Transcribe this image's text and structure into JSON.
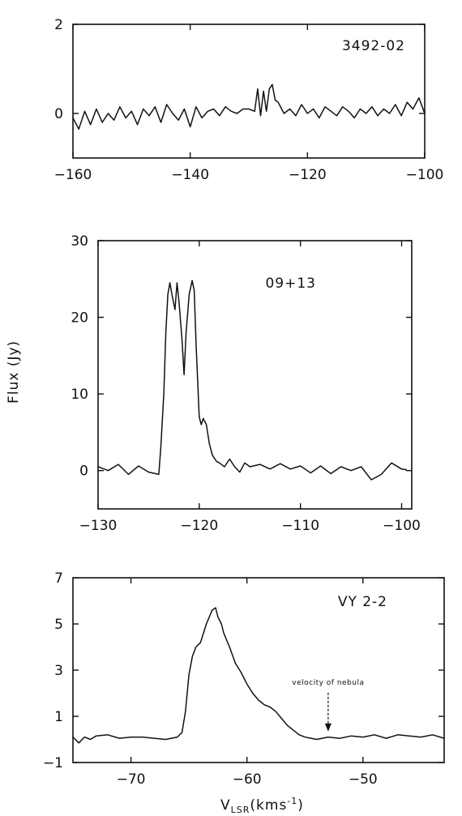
{
  "chart_data": {
    "type": "line",
    "ylabel": "Flux (Jy)",
    "xlabel": "V",
    "xlabel_sub": "LSR",
    "xlabel_unit": "(kms",
    "xlabel_sup": "-1",
    "xlabel_close": ")",
    "panels": [
      {
        "label": "3492-02",
        "xlim": [
          -160,
          -100
        ],
        "ylim": [
          -1,
          2
        ],
        "xticks": [
          -160,
          -140,
          -120,
          -100
        ],
        "yticks": [
          0,
          2
        ],
        "series": [
          {
            "x": [
              -160,
              -159,
              -158,
              -157,
              -156,
              -155,
              -154,
              -153,
              -152,
              -151,
              -150,
              -149,
              -148,
              -147,
              -146,
              -145,
              -144,
              -143,
              -142,
              -141,
              -140,
              -139,
              -138,
              -137,
              -136,
              -135,
              -134,
              -133,
              -132,
              -131,
              -130,
              -129,
              -128.5,
              -128,
              -127.5,
              -127,
              -126.5,
              -126,
              -125.5,
              -125,
              -124,
              -123,
              -122,
              -121,
              -120,
              -119,
              -118,
              -117,
              -116,
              -115,
              -114,
              -113,
              -112,
              -111,
              -110,
              -109,
              -108,
              -107,
              -106,
              -105,
              -104,
              -103,
              -102,
              -101,
              -100
            ],
            "y": [
              -0.1,
              -0.35,
              0.05,
              -0.25,
              0.1,
              -0.2,
              0.0,
              -0.15,
              0.15,
              -0.1,
              0.05,
              -0.25,
              0.1,
              -0.05,
              0.15,
              -0.2,
              0.2,
              0.0,
              -0.15,
              0.1,
              -0.3,
              0.15,
              -0.1,
              0.05,
              0.1,
              -0.05,
              0.15,
              0.05,
              0.0,
              0.1,
              0.1,
              0.05,
              0.55,
              -0.05,
              0.5,
              0.05,
              0.55,
              0.65,
              0.3,
              0.25,
              0.0,
              0.1,
              -0.05,
              0.2,
              0.0,
              0.1,
              -0.1,
              0.15,
              0.05,
              -0.05,
              0.15,
              0.05,
              -0.1,
              0.1,
              0.0,
              0.15,
              -0.05,
              0.1,
              0.0,
              0.2,
              -0.05,
              0.25,
              0.1,
              0.35,
              0.0
            ]
          }
        ]
      },
      {
        "label": "09+13",
        "xlim": [
          -130,
          -99
        ],
        "ylim": [
          -5,
          30
        ],
        "xticks": [
          -130,
          -120,
          -110,
          -100
        ],
        "yticks": [
          0,
          10,
          20,
          30
        ],
        "series": [
          {
            "x": [
              -130,
              -129,
              -128,
              -127,
              -126,
              -125,
              -124,
              -123.8,
              -123.5,
              -123.3,
              -123.1,
              -122.9,
              -122.7,
              -122.4,
              -122.2,
              -122,
              -121.7,
              -121.5,
              -121.3,
              -121,
              -120.7,
              -120.5,
              -120.3,
              -120,
              -119.8,
              -119.6,
              -119.3,
              -119,
              -118.7,
              -118.3,
              -118,
              -117.5,
              -117,
              -116.5,
              -116,
              -115.5,
              -115,
              -114,
              -113,
              -112,
              -111,
              -110,
              -109,
              -108,
              -107,
              -106,
              -105,
              -104,
              -103,
              -102,
              -101,
              -100,
              -99.5
            ],
            "y": [
              0.5,
              0.0,
              0.8,
              -0.5,
              0.6,
              -0.2,
              -0.5,
              3,
              10,
              18,
              23,
              24.5,
              23,
              21,
              24.5,
              22,
              17,
              12.5,
              18,
              23,
              24.8,
              23.5,
              16,
              7,
              6,
              6.8,
              6,
              3.5,
              2,
              1.2,
              1,
              0.5,
              1.5,
              0.5,
              -0.2,
              1,
              0.5,
              0.8,
              0.2,
              0.9,
              0.2,
              0.6,
              -0.3,
              0.6,
              -0.4,
              0.5,
              0.0,
              0.5,
              -1.2,
              -0.5,
              1,
              0.2,
              0.1
            ]
          }
        ]
      },
      {
        "label": "VY 2-2",
        "xlim": [
          -75,
          -43
        ],
        "ylim": [
          -1,
          7
        ],
        "xticks": [
          -70,
          -60,
          -50
        ],
        "yticks": [
          -1,
          1,
          3,
          5,
          7
        ],
        "annotation": {
          "text": "velocity of nebula",
          "x": -53,
          "y": 0.2
        },
        "series": [
          {
            "x": [
              -75,
              -74.5,
              -74,
              -73.5,
              -73,
              -72,
              -71,
              -70,
              -69,
              -68,
              -67,
              -66,
              -65.6,
              -65.3,
              -65,
              -64.7,
              -64.4,
              -64,
              -63.5,
              -63,
              -62.7,
              -62.5,
              -62.2,
              -62,
              -61.5,
              -61,
              -60.5,
              -60,
              -59.5,
              -59,
              -58.5,
              -58,
              -57.5,
              -57,
              -56.5,
              -56,
              -55.5,
              -55,
              -54,
              -53,
              -52,
              -51,
              -50,
              -49,
              -48,
              -47,
              -46,
              -45,
              -44,
              -43
            ],
            "y": [
              0.1,
              -0.15,
              0.1,
              0.0,
              0.15,
              0.2,
              0.05,
              0.1,
              0.1,
              0.05,
              0.0,
              0.1,
              0.3,
              1.2,
              2.8,
              3.6,
              4.0,
              4.2,
              5.0,
              5.6,
              5.7,
              5.3,
              5.0,
              4.6,
              4.0,
              3.3,
              2.9,
              2.4,
              2.0,
              1.7,
              1.5,
              1.4,
              1.2,
              0.9,
              0.6,
              0.4,
              0.2,
              0.1,
              0.0,
              0.1,
              0.05,
              0.15,
              0.1,
              0.2,
              0.05,
              0.2,
              0.15,
              0.1,
              0.2,
              0.05
            ]
          }
        ]
      }
    ]
  }
}
